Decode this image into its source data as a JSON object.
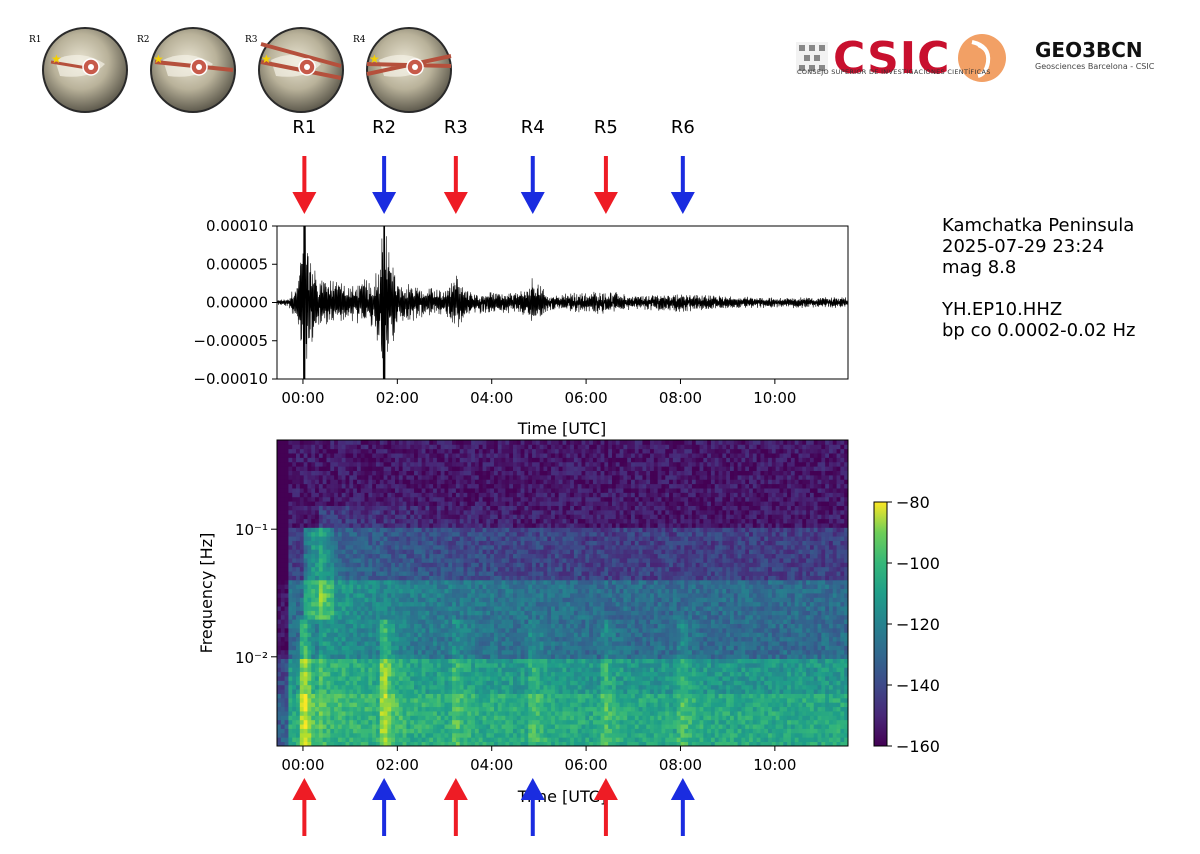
{
  "globes": [
    {
      "label": "R1"
    },
    {
      "label": "R2"
    },
    {
      "label": "R3"
    },
    {
      "label": "R4"
    }
  ],
  "logos": {
    "csic_name": "CSIC",
    "csic_subtitle": "Consejo Superior de Investigaciones Científicas",
    "geo_name": "GEO3BCN",
    "geo_subtitle": "Geosciences Barcelona - CSIC"
  },
  "event": {
    "region": "Kamchatka Peninsula",
    "datetime": "2025-07-29 23:24",
    "magnitude": "mag 8.8",
    "station": "YH.EP10.HHZ",
    "filter": "bp co 0.0002-0.02 Hz"
  },
  "chart_data": {
    "type": "figure",
    "colors": {
      "red": "#ee1c25",
      "blue": "#1a2ce0",
      "trace": "#000000"
    },
    "arrivals": [
      {
        "label": "R1",
        "time": 0.03,
        "color": "red"
      },
      {
        "label": "R2",
        "time": 1.72,
        "color": "blue"
      },
      {
        "label": "R3",
        "time": 3.24,
        "color": "red"
      },
      {
        "label": "R4",
        "time": 4.87,
        "color": "blue"
      },
      {
        "label": "R5",
        "time": 6.42,
        "color": "red"
      },
      {
        "label": "R6",
        "time": 8.05,
        "color": "blue"
      }
    ],
    "waveform": {
      "type": "line",
      "title": "",
      "xlabel": "Time [UTC]",
      "ylabel": "",
      "xlim": [
        -0.55,
        11.55
      ],
      "ylim": [
        -0.0001,
        0.0001
      ],
      "xticks": [
        0,
        2,
        4,
        6,
        8,
        10
      ],
      "xtick_labels": [
        "00:00",
        "02:00",
        "04:00",
        "06:00",
        "08:00",
        "10:00"
      ],
      "yticks": [
        -0.0001,
        -5e-05,
        0,
        5e-05,
        0.0001
      ],
      "ytick_labels": [
        "−0.00010",
        "−0.00005",
        "0.00000",
        "0.00005",
        "0.00010"
      ],
      "envelope": [
        {
          "t": -0.55,
          "amp": 3e-06
        },
        {
          "t": -0.3,
          "amp": 5e-06
        },
        {
          "t": -0.1,
          "amp": 3e-05
        },
        {
          "t": 0.03,
          "amp": 0.0001
        },
        {
          "t": 0.3,
          "amp": 3e-05
        },
        {
          "t": 1.0,
          "amp": 2.2e-05
        },
        {
          "t": 1.5,
          "amp": 3e-05
        },
        {
          "t": 1.72,
          "amp": 0.0001
        },
        {
          "t": 2.0,
          "amp": 2.5e-05
        },
        {
          "t": 3.0,
          "amp": 1.4e-05
        },
        {
          "t": 3.24,
          "amp": 3.5e-05
        },
        {
          "t": 3.5,
          "amp": 1.3e-05
        },
        {
          "t": 4.6,
          "amp": 1.2e-05
        },
        {
          "t": 4.87,
          "amp": 3.2e-05
        },
        {
          "t": 5.2,
          "amp": 9e-06
        },
        {
          "t": 6.42,
          "amp": 1.4e-05
        },
        {
          "t": 7.0,
          "amp": 8e-06
        },
        {
          "t": 8.05,
          "amp": 1.2e-05
        },
        {
          "t": 9.0,
          "amp": 7e-06
        },
        {
          "t": 11.55,
          "amp": 6e-06
        }
      ]
    },
    "spectrogram": {
      "type": "heatmap",
      "xlabel": "Time [UTC]",
      "ylabel": "Frequency [Hz]",
      "xlim": [
        -0.55,
        11.55
      ],
      "ylim": [
        0.002,
        0.5
      ],
      "yscale": "log",
      "xticks": [
        0,
        2,
        4,
        6,
        8,
        10
      ],
      "xtick_labels": [
        "00:00",
        "02:00",
        "04:00",
        "06:00",
        "08:00",
        "10:00"
      ],
      "yticks": [
        0.01,
        0.1
      ],
      "ytick_labels": [
        "10⁻²",
        "10⁻¹"
      ],
      "colormap": "viridis",
      "colorbar": {
        "range": [
          -160,
          -80
        ],
        "ticks": [
          -80,
          -100,
          -120,
          -140,
          -160
        ],
        "tick_labels": [
          "−80",
          "−100",
          "−120",
          "−140",
          "−160"
        ]
      }
    }
  }
}
